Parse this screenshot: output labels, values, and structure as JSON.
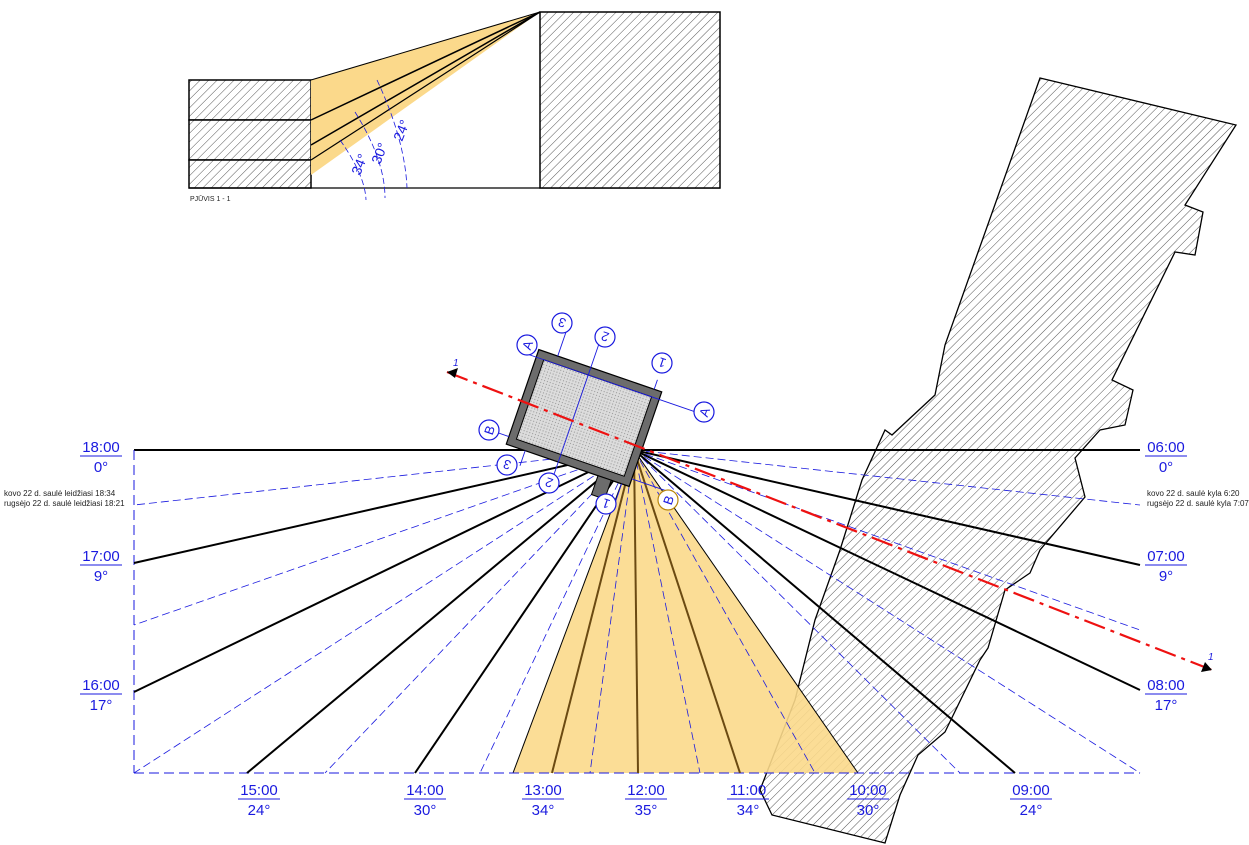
{
  "section_view": {
    "caption": "PJŪVIS 1 - 1",
    "angles": [
      "24°",
      "30°",
      "34°"
    ]
  },
  "section_marker": "1",
  "time_labels": {
    "left": [
      {
        "time": "18:00",
        "angle": "0°"
      },
      {
        "time": "17:00",
        "angle": "9°"
      },
      {
        "time": "16:00",
        "angle": "17°"
      }
    ],
    "right": [
      {
        "time": "06:00",
        "angle": "0°"
      },
      {
        "time": "07:00",
        "angle": "9°"
      },
      {
        "time": "08:00",
        "angle": "17°"
      }
    ],
    "bottom": [
      {
        "time": "15:00",
        "angle": "24°"
      },
      {
        "time": "14:00",
        "angle": "30°"
      },
      {
        "time": "13:00",
        "angle": "34°"
      },
      {
        "time": "12:00",
        "angle": "35°"
      },
      {
        "time": "11:00",
        "angle": "34°"
      },
      {
        "time": "10:00",
        "angle": "30°"
      },
      {
        "time": "09:00",
        "angle": "24°"
      }
    ]
  },
  "notes": {
    "left_1": "kovo 22 d. saulė leidžiasi 18:34",
    "left_2": "rugsėjo 22 d. saulė leidžiasi 18:21",
    "right_1": "kovo 22 d. saulė kyla 6:20",
    "right_2": "rugsėjo 22 d. saulė kyla 7:07"
  },
  "grid_axes": [
    "A",
    "B",
    "1",
    "2",
    "3"
  ],
  "colors": {
    "sun_fill": "#fbd98b",
    "blue": "#1a1adf",
    "red": "#ee1111",
    "hatch": "#333333",
    "building_dark": "#666666"
  }
}
